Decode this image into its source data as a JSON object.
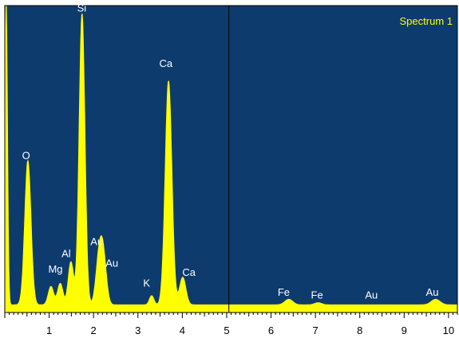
{
  "chart_data": {
    "type": "area",
    "title": "",
    "xlabel": "",
    "ylabel": "",
    "legend": {
      "label": "Spectrum 1",
      "placement": "top-right"
    },
    "xlim": [
      0,
      10.2
    ],
    "ylim": [
      0,
      100
    ],
    "x_ticks": [
      1,
      2,
      3,
      4,
      5,
      6,
      7,
      8,
      9,
      10
    ],
    "cursor_x": 5.05,
    "series": [
      {
        "name": "Spectrum 1",
        "color": "#ffff00",
        "baseline": 2.5,
        "peaks": [
          {
            "x": 0.03,
            "height": 100,
            "width": 0.03
          },
          {
            "x": 0.52,
            "height": 47,
            "width": 0.07
          },
          {
            "x": 1.04,
            "height": 6,
            "width": 0.06
          },
          {
            "x": 1.25,
            "height": 7,
            "width": 0.06
          },
          {
            "x": 1.49,
            "height": 14,
            "width": 0.06
          },
          {
            "x": 1.74,
            "height": 95,
            "width": 0.065
          },
          {
            "x": 2.12,
            "height": 14,
            "width": 0.07
          },
          {
            "x": 2.22,
            "height": 15,
            "width": 0.07
          },
          {
            "x": 3.31,
            "height": 3,
            "width": 0.05
          },
          {
            "x": 3.69,
            "height": 73,
            "width": 0.075
          },
          {
            "x": 4.01,
            "height": 9,
            "width": 0.07
          },
          {
            "x": 6.4,
            "height": 1.8,
            "width": 0.09
          },
          {
            "x": 7.06,
            "height": 0.7,
            "width": 0.08
          },
          {
            "x": 9.71,
            "height": 1.8,
            "width": 0.1
          }
        ]
      }
    ],
    "peak_labels": [
      {
        "text": "O",
        "x": 0.39,
        "y": 50
      },
      {
        "text": "Si",
        "x": 1.63,
        "y": 98
      },
      {
        "text": "Ca",
        "x": 3.48,
        "y": 80
      },
      {
        "text": "Al",
        "x": 1.28,
        "y": 18
      },
      {
        "text": "Mg",
        "x": 0.98,
        "y": 13
      },
      {
        "text": "Au",
        "x": 1.93,
        "y": 22
      },
      {
        "text": "Au",
        "x": 2.27,
        "y": 15
      },
      {
        "text": "K",
        "x": 3.12,
        "y": 8.5
      },
      {
        "text": "Ca",
        "x": 4.0,
        "y": 12
      },
      {
        "text": "Fe",
        "x": 6.15,
        "y": 5.5
      },
      {
        "text": "Fe",
        "x": 6.9,
        "y": 4.5
      },
      {
        "text": "Au",
        "x": 8.12,
        "y": 4.5
      },
      {
        "text": "Au",
        "x": 9.49,
        "y": 5.5
      }
    ]
  }
}
